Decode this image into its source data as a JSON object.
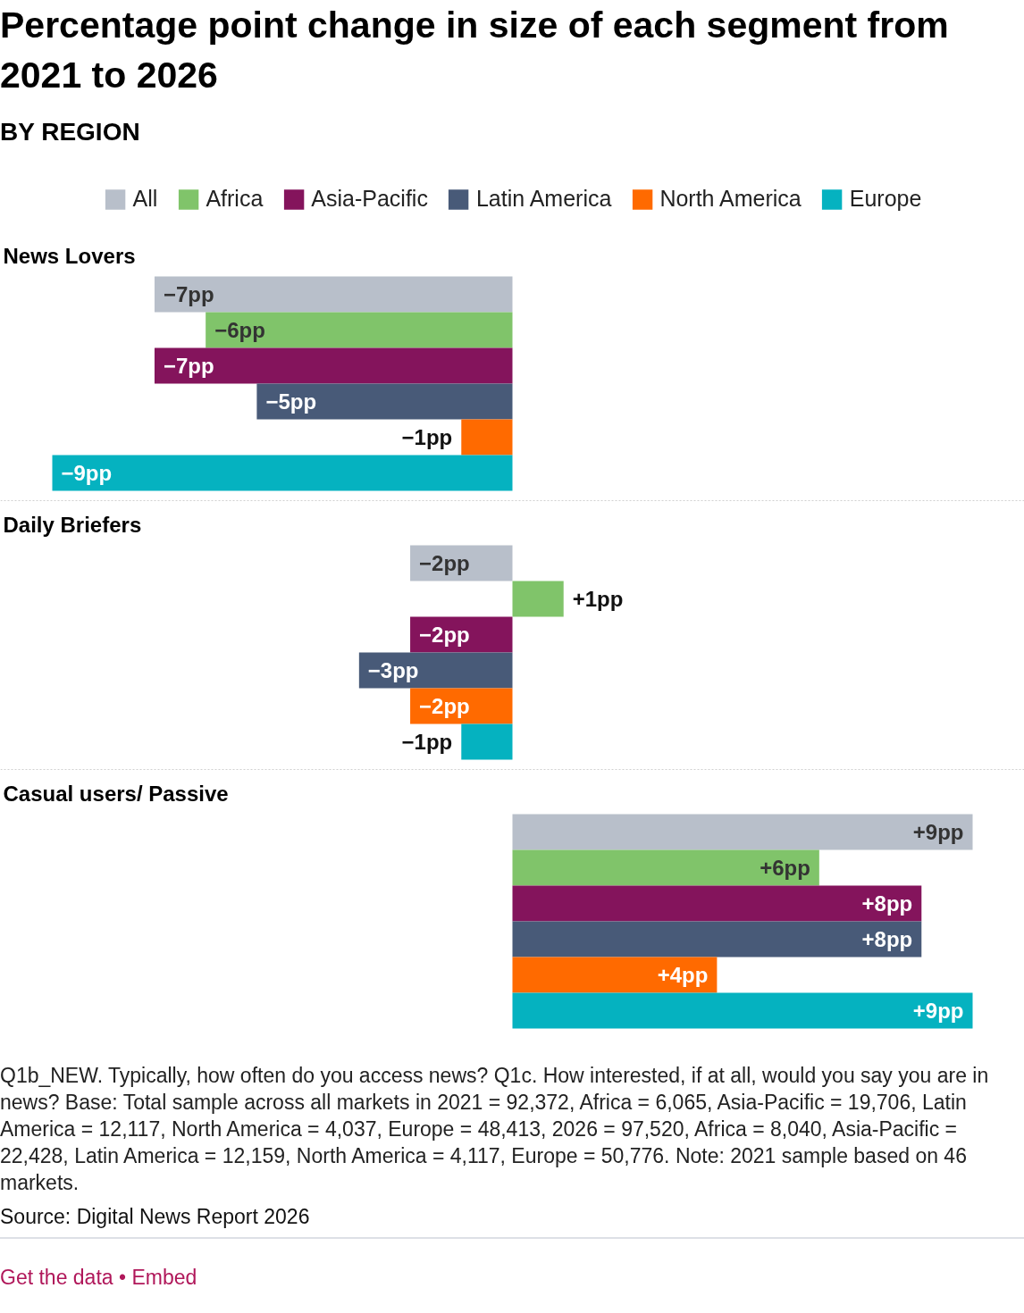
{
  "chart_data": {
    "type": "bar",
    "orientation": "horizontal",
    "title": "Percentage point change in size of each segment from 2021 to 2026",
    "subtitle": "BY REGION",
    "categories": [
      "News Lovers",
      "Daily Briefers",
      "Casual users/ Passive"
    ],
    "series": [
      {
        "name": "All",
        "color": "#b8bfca",
        "values": [
          -7,
          -2,
          9
        ],
        "value_labels": [
          "−7pp",
          "−2pp",
          "+9pp"
        ]
      },
      {
        "name": "Africa",
        "color": "#80c46a",
        "values": [
          -6,
          1,
          6
        ],
        "value_labels": [
          "−6pp",
          "+1pp",
          "+6pp"
        ]
      },
      {
        "name": "Asia-Pacific",
        "color": "#84145c",
        "values": [
          -7,
          -2,
          8
        ],
        "value_labels": [
          "−7pp",
          "−2pp",
          "+8pp"
        ]
      },
      {
        "name": "Latin America",
        "color": "#485a78",
        "values": [
          -5,
          -3,
          8
        ],
        "value_labels": [
          "−5pp",
          "−3pp",
          "+8pp"
        ]
      },
      {
        "name": "North America",
        "color": "#ff6a00",
        "values": [
          -1,
          -2,
          4
        ],
        "value_labels": [
          "−1pp",
          "−2pp",
          "+4pp"
        ]
      },
      {
        "name": "Europe",
        "color": "#05b2c0",
        "values": [
          -9,
          -1,
          9
        ],
        "value_labels": [
          "−9pp",
          "−1pp",
          "+9pp"
        ]
      }
    ],
    "legend": "top",
    "tick_labels": "y",
    "annotations": [
      "Q1b_NEW. Typically, how often do you access news? Q1c. How interested, if at all, would you say you are in news? Base: Total sample across all markets in 2021 = 92,372, Africa = 6,065, Asia-Pacific = 19,706, Latin America = 12,117, North America = 4,037, Europe = 48,413, 2026 = 97,520, Africa = 8,040, Asia-Pacific = 22,428, Latin America = 12,159, North America = 4,117, Europe = 50,776. Note: 2021 sample based on 46 markets.",
      "Source: Digital News Report 2026",
      "Get the data • Embed"
    ]
  }
}
